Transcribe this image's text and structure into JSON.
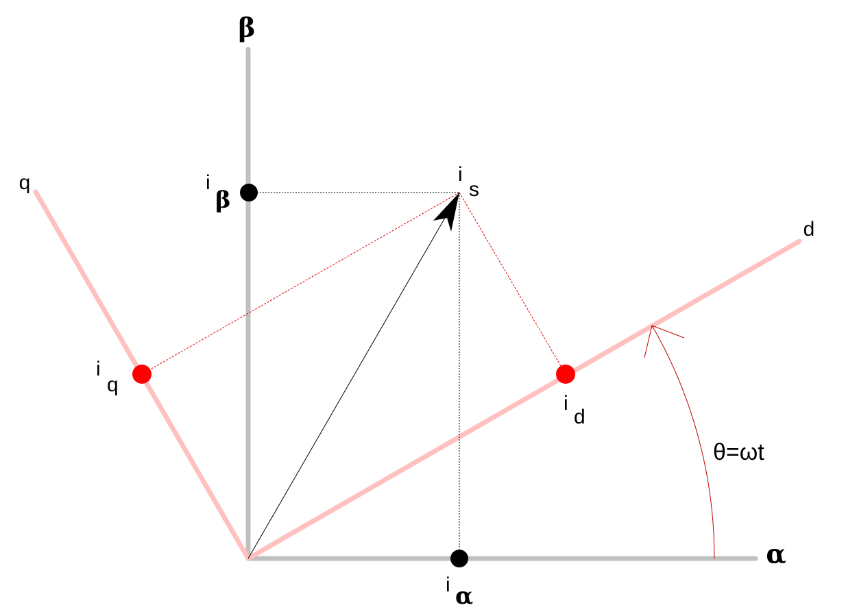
{
  "axes": {
    "beta": "β",
    "alpha": "α",
    "q": "q",
    "d": "d"
  },
  "points": {
    "i_beta": {
      "main": "i",
      "sub": "β"
    },
    "i_s": {
      "main": "i",
      "sub": "s"
    },
    "i_q": {
      "main": "i",
      "sub": "q"
    },
    "i_d": {
      "main": "i",
      "sub": "d"
    },
    "i_alpha": {
      "main": "i",
      "sub": "α"
    }
  },
  "angle": "θ=ωt"
}
